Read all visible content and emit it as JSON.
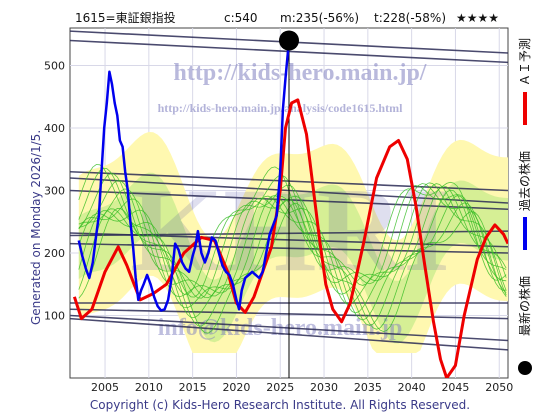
{
  "header": {
    "code_name": "1615=東証銀指投",
    "current": "c:540",
    "mid": "m:235(-56%)",
    "target": "t:228(-58%)",
    "stars": "★★★★"
  },
  "side_left": "Generated on Monday 2026/1/5.",
  "footer": "Copyright (c) Kids-Hero Research Institute. All Rights Reserved.",
  "watermarks": {
    "url_top": "http://kids-hero.main.jp/",
    "url_analysis": "http://kids-hero.main.jp/analysis/code1615.html",
    "big": "KHRI",
    "email": "info@kids-hero.main.jp"
  },
  "colors": {
    "ai": "#ee0000",
    "past": "#0000ee",
    "latest": "#000000",
    "green": "#33bb22",
    "fill_yellow": "#fff8b0",
    "fill_green": "#c8ec8c",
    "trend": "#2a2a55"
  },
  "chart_data": {
    "type": "line",
    "xlim": [
      2001,
      2051
    ],
    "ylim": [
      0,
      560
    ],
    "xticks": [
      "2005",
      "2010",
      "2015",
      "2020",
      "2025",
      "2030",
      "2035",
      "2040",
      "2045",
      "2050"
    ],
    "yticks": [
      "100",
      "200",
      "300",
      "400",
      "500"
    ],
    "vline_x": 2026,
    "legend": [
      {
        "label": "ＡＩ予測",
        "color": "#ee0000",
        "kind": "line"
      },
      {
        "label": "過去の株価",
        "color": "#0000ee",
        "kind": "line"
      },
      {
        "label": "最新の株価",
        "color": "#000000",
        "kind": "dot"
      }
    ],
    "latest_point": {
      "x": 2026.0,
      "y": 540
    },
    "series": [
      {
        "name": "過去の株価",
        "x": [
          2002.0,
          2002.4,
          2002.8,
          2003.2,
          2003.6,
          2004.0,
          2004.3,
          2004.6,
          2004.9,
          2005.2,
          2005.5,
          2005.8,
          2006.1,
          2006.4,
          2006.7,
          2007.0,
          2007.3,
          2007.6,
          2007.9,
          2008.2,
          2008.5,
          2008.8,
          2009.1,
          2009.4,
          2009.8,
          2010.2,
          2010.6,
          2011.0,
          2011.4,
          2011.8,
          2012.2,
          2012.6,
          2013.0,
          2013.4,
          2013.8,
          2014.2,
          2014.6,
          2015.0,
          2015.3,
          2015.6,
          2016.0,
          2016.4,
          2016.8,
          2017.2,
          2017.6,
          2018.0,
          2018.4,
          2018.8,
          2019.2,
          2019.6,
          2020.0,
          2020.3,
          2020.6,
          2021.0,
          2021.4,
          2021.8,
          2022.2,
          2022.6,
          2023.0,
          2023.4,
          2023.8,
          2024.2,
          2024.6,
          2025.0,
          2025.3,
          2025.6,
          2026.0
        ],
        "y": [
          220,
          195,
          175,
          160,
          185,
          230,
          260,
          330,
          400,
          440,
          490,
          470,
          440,
          420,
          380,
          370,
          330,
          300,
          250,
          210,
          160,
          125,
          140,
          150,
          165,
          150,
          130,
          115,
          108,
          110,
          125,
          160,
          215,
          205,
          185,
          175,
          170,
          195,
          210,
          235,
          200,
          185,
          200,
          225,
          220,
          200,
          180,
          170,
          165,
          150,
          125,
          110,
          140,
          160,
          165,
          170,
          165,
          160,
          170,
          200,
          230,
          245,
          260,
          330,
          430,
          480,
          540
        ]
      },
      {
        "name": "ＡＩ予測",
        "x": [
          2001.5,
          2002.3,
          2003.5,
          2005.0,
          2006.5,
          2007.5,
          2009.0,
          2010.5,
          2012.0,
          2014.0,
          2016.0,
          2017.5,
          2019.0,
          2020.0,
          2021.0,
          2022.0,
          2023.0,
          2024.0,
          2025.0,
          2025.6,
          2026.3,
          2027.0,
          2028.0,
          2028.8,
          2029.5,
          2030.2,
          2031.0,
          2032.0,
          2033.0,
          2034.5,
          2036.0,
          2037.5,
          2038.5,
          2039.5,
          2040.5,
          2041.5,
          2042.5,
          2043.3,
          2044.0,
          2045.0,
          2046.0,
          2047.5,
          2048.5,
          2049.5,
          2050.5,
          2051.0
        ],
        "y": [
          130,
          95,
          110,
          170,
          210,
          180,
          125,
          135,
          150,
          200,
          225,
          220,
          170,
          120,
          105,
          130,
          170,
          210,
          300,
          400,
          440,
          445,
          390,
          300,
          220,
          150,
          110,
          90,
          120,
          215,
          320,
          370,
          380,
          350,
          275,
          180,
          90,
          30,
          0,
          20,
          100,
          190,
          225,
          245,
          230,
          215
        ]
      }
    ]
  }
}
